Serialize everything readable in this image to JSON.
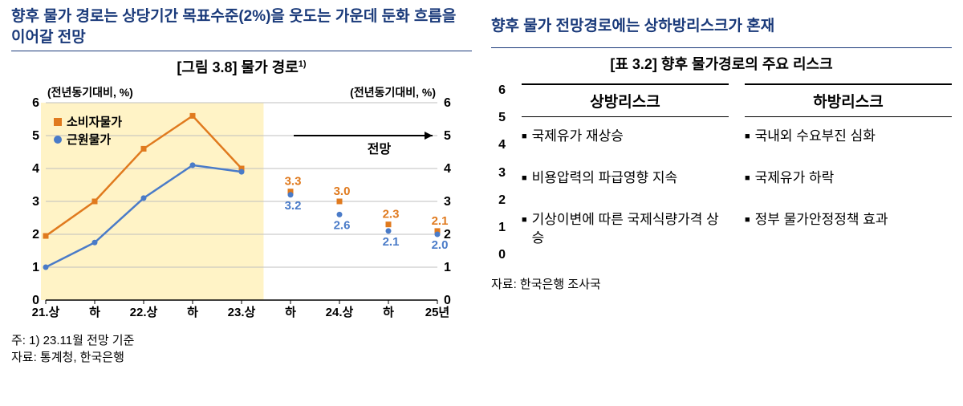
{
  "left": {
    "headline": "향후 물가 경로는 상당기간 목표수준(2%)을 웃도는 가운데 둔화 흐름을 이어갈 전망",
    "fig_title": "[그림 3.8]  물가  경로",
    "fig_sup": "1)",
    "axis_label_left": "(전년동기대비, %)",
    "axis_label_right": "(전년동기대비, %)",
    "forecast_label": "전망",
    "legend": [
      {
        "marker": "#e07a1e",
        "label": "소비자물가"
      },
      {
        "marker": "#4a7bc8",
        "label": "근원물가"
      }
    ],
    "chart": {
      "type": "line+scatter",
      "y": {
        "min": 0,
        "max": 6,
        "ticks": [
          0,
          1,
          2,
          3,
          4,
          5,
          6
        ]
      },
      "x_categories": [
        "21.상",
        "하",
        "22.상",
        "하",
        "23.상",
        "하",
        "24.상",
        "하",
        "25년"
      ],
      "hist_count": 5,
      "shade_color": "#fff3c6",
      "grid_color": "#bfbfbf",
      "axis_color": "#000000",
      "background": "#ffffff",
      "series": [
        {
          "name": "소비자물가",
          "color": "#e07a1e",
          "line_width": 2.5,
          "marker": "square",
          "marker_size": 7,
          "hist_values": [
            1.95,
            3.0,
            4.6,
            5.6,
            4.0
          ],
          "fcst_values": [
            3.3,
            3.0,
            2.3,
            2.1
          ]
        },
        {
          "name": "근원물가",
          "color": "#4a7bc8",
          "line_width": 2.5,
          "marker": "circle",
          "marker_size": 7,
          "hist_values": [
            1.0,
            1.75,
            3.1,
            4.1,
            3.9
          ],
          "fcst_values": [
            3.2,
            2.6,
            2.1,
            2.0
          ]
        }
      ],
      "fcst_labels_top": [
        "3.3",
        "3.0",
        "2.3",
        "2.1"
      ],
      "fcst_labels_bottom": [
        "3.2",
        "2.6",
        "2.1",
        "2.0"
      ],
      "label_color_top": "#e07a1e",
      "label_color_bottom": "#4a7bc8",
      "label_fontsize": 15,
      "tick_fontsize": 16,
      "arrow_color": "#000000"
    },
    "note1": "주: 1) 23.11월 전망 기준",
    "note2": "자료: 통계청, 한국은행"
  },
  "right": {
    "headline": "향후 물가 전망경로에는 상하방리스크가 혼재",
    "fig_title": "[표 3.2] 향후 물가경로의 주요 리스크",
    "axis_ticks": [
      "6",
      "5",
      "4",
      "3",
      "2",
      "1",
      "0"
    ],
    "col_up_head": "상방리스크",
    "col_down_head": "하방리스크",
    "up_items": [
      "국제유가 재상승",
      "비용압력의 파급영향 지속",
      "기상이변에 따른 국제식량가격 상승"
    ],
    "down_items": [
      "국내외 수요부진 심화",
      "국제유가 하락",
      "정부 물가안정정책 효과"
    ],
    "source": "자료: 한국은행 조사국"
  }
}
